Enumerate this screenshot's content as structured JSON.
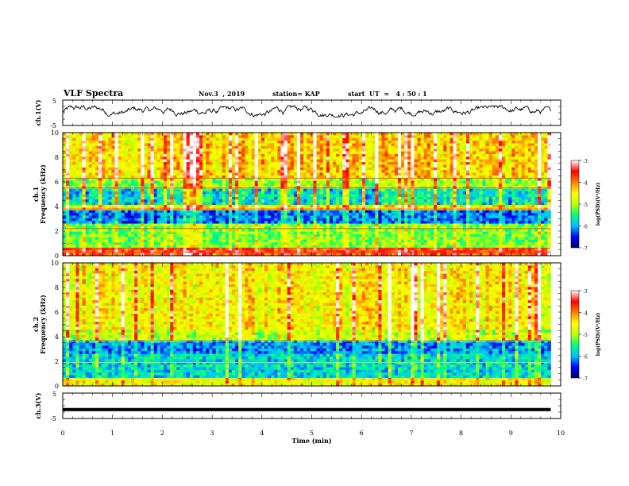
{
  "header": {
    "title": "VLF Spectra",
    "date": "Nov.3  , 2019",
    "station": "station= KAP",
    "start": "start  UT  =   4 : 50 : 1"
  },
  "chart_data": [
    {
      "type": "line",
      "id": "ch1-waveform",
      "ylabel": "ch.1(V)",
      "ylim": [
        -5,
        5
      ],
      "yticks": [
        5,
        -5
      ],
      "xlim": [
        0,
        10
      ],
      "note_values": "noisy waveform fluctuating roughly between -1 and +2 V over 0 to 9.8 min",
      "x_end": 9.8
    },
    {
      "type": "heatmap",
      "id": "ch1-spectrogram",
      "ylabel_line1": "ch.1",
      "ylabel_line2": "Frequency (kHz)",
      "ylim": [
        0,
        10
      ],
      "yticks": [
        0,
        2,
        4,
        6,
        8,
        10
      ],
      "xlim": [
        0,
        9.8
      ],
      "colorbar": {
        "label": "log(PSD)(V²/Hz)",
        "range": [
          -7,
          -3
        ],
        "ticks": [
          "-3",
          "-4",
          "-5",
          "-6",
          "-7"
        ],
        "colors": [
          "#000060",
          "#0000ff",
          "#00c0ff",
          "#00ff80",
          "#c0ff00",
          "#ffff00",
          "#ff8000",
          "#ff0000",
          "#ffffff"
        ]
      }
    },
    {
      "type": "heatmap",
      "id": "ch2-spectrogram",
      "ylabel_line1": "ch.2",
      "ylabel_line2": "Frequency (kHz)",
      "ylim": [
        0,
        10
      ],
      "yticks": [
        0,
        2,
        4,
        6,
        8,
        10
      ],
      "xlim": [
        0,
        9.8
      ],
      "colorbar": {
        "label": "log(PSD)(V²/Hz)",
        "range": [
          -7,
          -3
        ],
        "ticks": [
          "-3",
          "-4",
          "-5",
          "-6",
          "-7"
        ],
        "colors": [
          "#000060",
          "#0000ff",
          "#00c0ff",
          "#00ff80",
          "#c0ff00",
          "#ffff00",
          "#ff8000",
          "#ff0000",
          "#ffffff"
        ]
      }
    },
    {
      "type": "line",
      "id": "ch3-waveform",
      "ylabel": "ch.3(V)",
      "ylim": [
        -5,
        5
      ],
      "yticks": [
        5,
        -5
      ],
      "xlim": [
        0,
        10
      ],
      "constant_value": -1.5,
      "x_end": 9.8
    }
  ],
  "xaxis": {
    "label": "Time  (min)",
    "ticks": [
      "0",
      "1",
      "2",
      "3",
      "4",
      "5",
      "6",
      "7",
      "8",
      "9",
      "10"
    ],
    "range": [
      0,
      10
    ]
  }
}
